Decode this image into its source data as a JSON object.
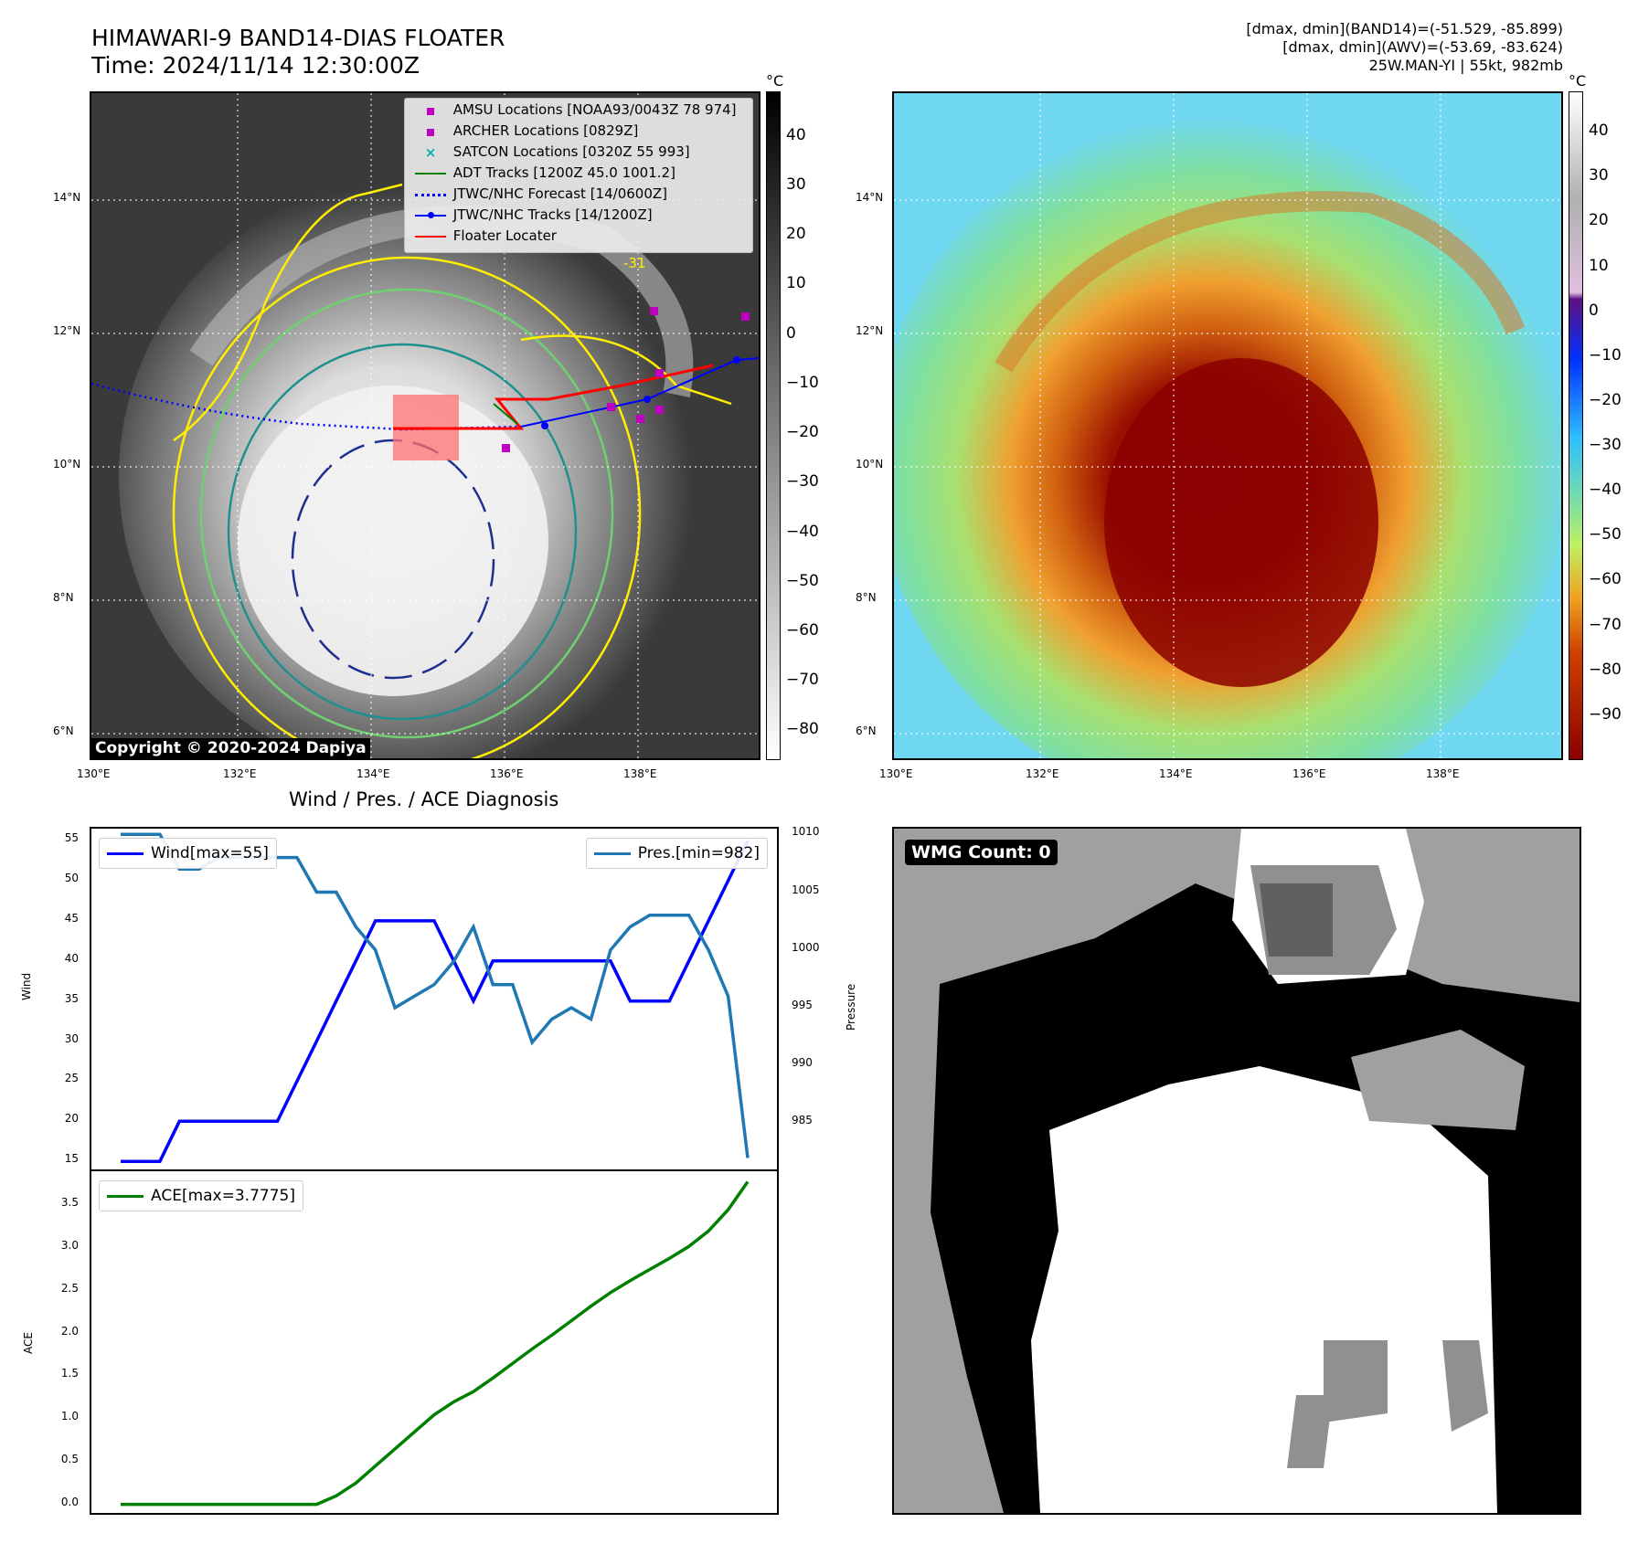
{
  "header": {
    "title_line1": "HIMAWARI-9 BAND14-DIAS FLOATER",
    "title_line2": "Time: 2024/11/14 12:30:00Z",
    "info_line1": "[dmax, dmin](BAND14)=(-51.529, -85.899)",
    "info_line2": "[dmax, dmin](AWV)=(-53.69, -83.624)",
    "info_line3": "25W.MAN-YI | 55kt, 982mb"
  },
  "map": {
    "lon_ticks": [
      "130°E",
      "132°E",
      "134°E",
      "136°E",
      "138°E"
    ],
    "lat_ticks": [
      "14°N",
      "12°N",
      "10°N",
      "8°N",
      "6°N"
    ],
    "copyright": "Copyright © 2020-2024 Dapiya",
    "contour_label": "-31",
    "legend": [
      {
        "label": "AMSU Locations [NOAA93/0043Z 78 974]",
        "symbol": "square",
        "color": "#c000c0"
      },
      {
        "label": "ARCHER Locations [0829Z]",
        "symbol": "square",
        "color": "#c000c0"
      },
      {
        "label": "SATCON Locations [0320Z 55 993]",
        "symbol": "x",
        "color": "#00b0b0"
      },
      {
        "label": "ADT Tracks [1200Z 45.0 1001.2]",
        "symbol": "line",
        "color": "#008000"
      },
      {
        "label": "JTWC/NHC Forecast [14/0600Z]",
        "symbol": "dotted",
        "color": "#0000ff"
      },
      {
        "label": "JTWC/NHC Tracks [14/1200Z]",
        "symbol": "line-dot",
        "color": "#0000ff"
      },
      {
        "label": "Floater Locater",
        "symbol": "line",
        "color": "#ff0000"
      }
    ]
  },
  "colorbar_gray": {
    "unit": "°C",
    "ticks": [
      "40",
      "30",
      "20",
      "10",
      "0",
      "−10",
      "−20",
      "−30",
      "−40",
      "−50",
      "−60",
      "−70",
      "−80"
    ]
  },
  "colorbar_color": {
    "unit": "°C",
    "ticks": [
      "40",
      "30",
      "20",
      "10",
      "0",
      "−10",
      "−20",
      "−30",
      "−40",
      "−50",
      "−60",
      "−70",
      "−80",
      "−90"
    ]
  },
  "wmg": {
    "count_label": "WMG Count: 0"
  },
  "chart_data": [
    {
      "type": "line",
      "title": "Wind / Pres. / ACE Diagnosis",
      "ylabel": "Wind",
      "y2label": "Pressure",
      "ylim": [
        14,
        56.5
      ],
      "y2lim": [
        981,
        1010.5
      ],
      "yticks": [
        "55",
        "50",
        "45",
        "40",
        "35",
        "30",
        "25",
        "20",
        "15"
      ],
      "y2ticks": [
        "1010",
        "1005",
        "1000",
        "995",
        "990",
        "985"
      ],
      "series": [
        {
          "name": "Wind[max=55]",
          "axis": "left",
          "color": "#0000ff",
          "values": [
            15,
            15,
            15,
            20,
            20,
            20,
            20,
            20,
            20,
            25,
            30,
            35,
            40,
            45,
            45,
            45,
            45,
            40,
            35,
            40,
            40,
            40,
            40,
            40,
            40,
            40,
            35,
            35,
            35,
            40,
            45,
            50,
            55
          ]
        },
        {
          "name": "Pres.[min=982]",
          "axis": "right",
          "color": "#1f77b4",
          "values": [
            1010,
            1010,
            1010,
            1007,
            1007,
            1008,
            1008,
            1008,
            1008,
            1008,
            1005,
            1005,
            1002,
            1000,
            995,
            996,
            997,
            999,
            1002,
            997,
            997,
            992,
            994,
            995,
            994,
            1000,
            1002,
            1003,
            1003,
            1003,
            1000,
            996,
            982
          ]
        }
      ]
    },
    {
      "type": "line",
      "ylabel": "ACE",
      "ylim": [
        -0.1,
        3.9
      ],
      "yticks": [
        "3.5",
        "3.0",
        "2.5",
        "2.0",
        "1.5",
        "1.0",
        "0.5",
        "0.0"
      ],
      "series": [
        {
          "name": "ACE[max=3.7775]",
          "color": "#008000",
          "values": [
            0,
            0,
            0,
            0,
            0,
            0,
            0,
            0,
            0,
            0,
            0,
            0.1,
            0.25,
            0.45,
            0.65,
            0.85,
            1.05,
            1.2,
            1.32,
            1.48,
            1.65,
            1.82,
            1.98,
            2.15,
            2.32,
            2.48,
            2.62,
            2.75,
            2.88,
            3.02,
            3.2,
            3.45,
            3.7775
          ]
        }
      ]
    }
  ]
}
